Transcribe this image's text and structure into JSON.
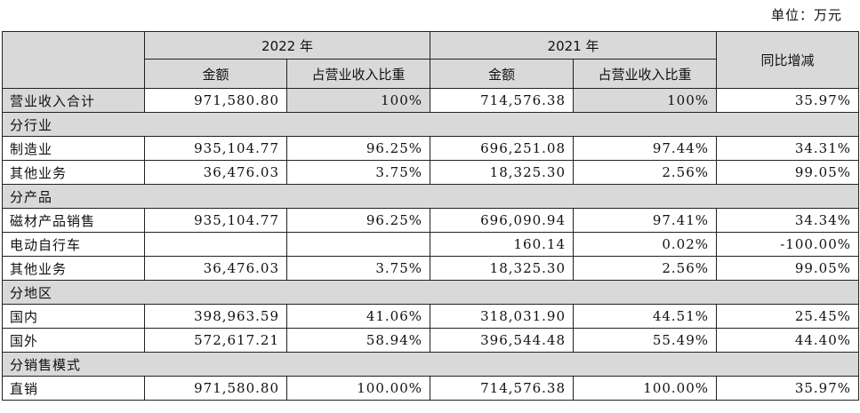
{
  "unit": "单位：万元",
  "headers": {
    "year2022": "2022 年",
    "year2021": "2021 年",
    "amount": "金额",
    "ratio": "占营业收入比重",
    "yoy": "同比增减"
  },
  "total": {
    "label": "营业收入合计",
    "a22": "971,580.80",
    "r22": "100%",
    "a21": "714,576.38",
    "r21": "100%",
    "yoy": "35.97%"
  },
  "sections": [
    {
      "title": "分行业",
      "rows": [
        {
          "label": "制造业",
          "a22": "935,104.77",
          "r22": "96.25%",
          "a21": "696,251.08",
          "r21": "97.44%",
          "yoy": "34.31%"
        },
        {
          "label": "其他业务",
          "a22": "36,476.03",
          "r22": "3.75%",
          "a21": "18,325.30",
          "r21": "2.56%",
          "yoy": "99.05%"
        }
      ]
    },
    {
      "title": "分产品",
      "rows": [
        {
          "label": "磁材产品销售",
          "a22": "935,104.77",
          "r22": "96.25%",
          "a21": "696,090.94",
          "r21": "97.41%",
          "yoy": "34.34%"
        },
        {
          "label": "电动自行车",
          "a22": "",
          "r22": "",
          "a21": "160.14",
          "r21": "0.02%",
          "yoy": "-100.00%"
        },
        {
          "label": "其他业务",
          "a22": "36,476.03",
          "r22": "3.75%",
          "a21": "18,325.30",
          "r21": "2.56%",
          "yoy": "99.05%"
        }
      ]
    },
    {
      "title": "分地区",
      "rows": [
        {
          "label": "国内",
          "a22": "398,963.59",
          "r22": "41.06%",
          "a21": "318,031.90",
          "r21": "44.51%",
          "yoy": "25.45%"
        },
        {
          "label": "国外",
          "a22": "572,617.21",
          "r22": "58.94%",
          "a21": "396,544.48",
          "r21": "55.49%",
          "yoy": "44.40%"
        }
      ]
    },
    {
      "title": "分销售模式",
      "rows": [
        {
          "label": "直销",
          "a22": "971,580.80",
          "r22": "100.00%",
          "a21": "714,576.38",
          "r21": "100.00%",
          "yoy": "35.97%"
        }
      ]
    }
  ]
}
